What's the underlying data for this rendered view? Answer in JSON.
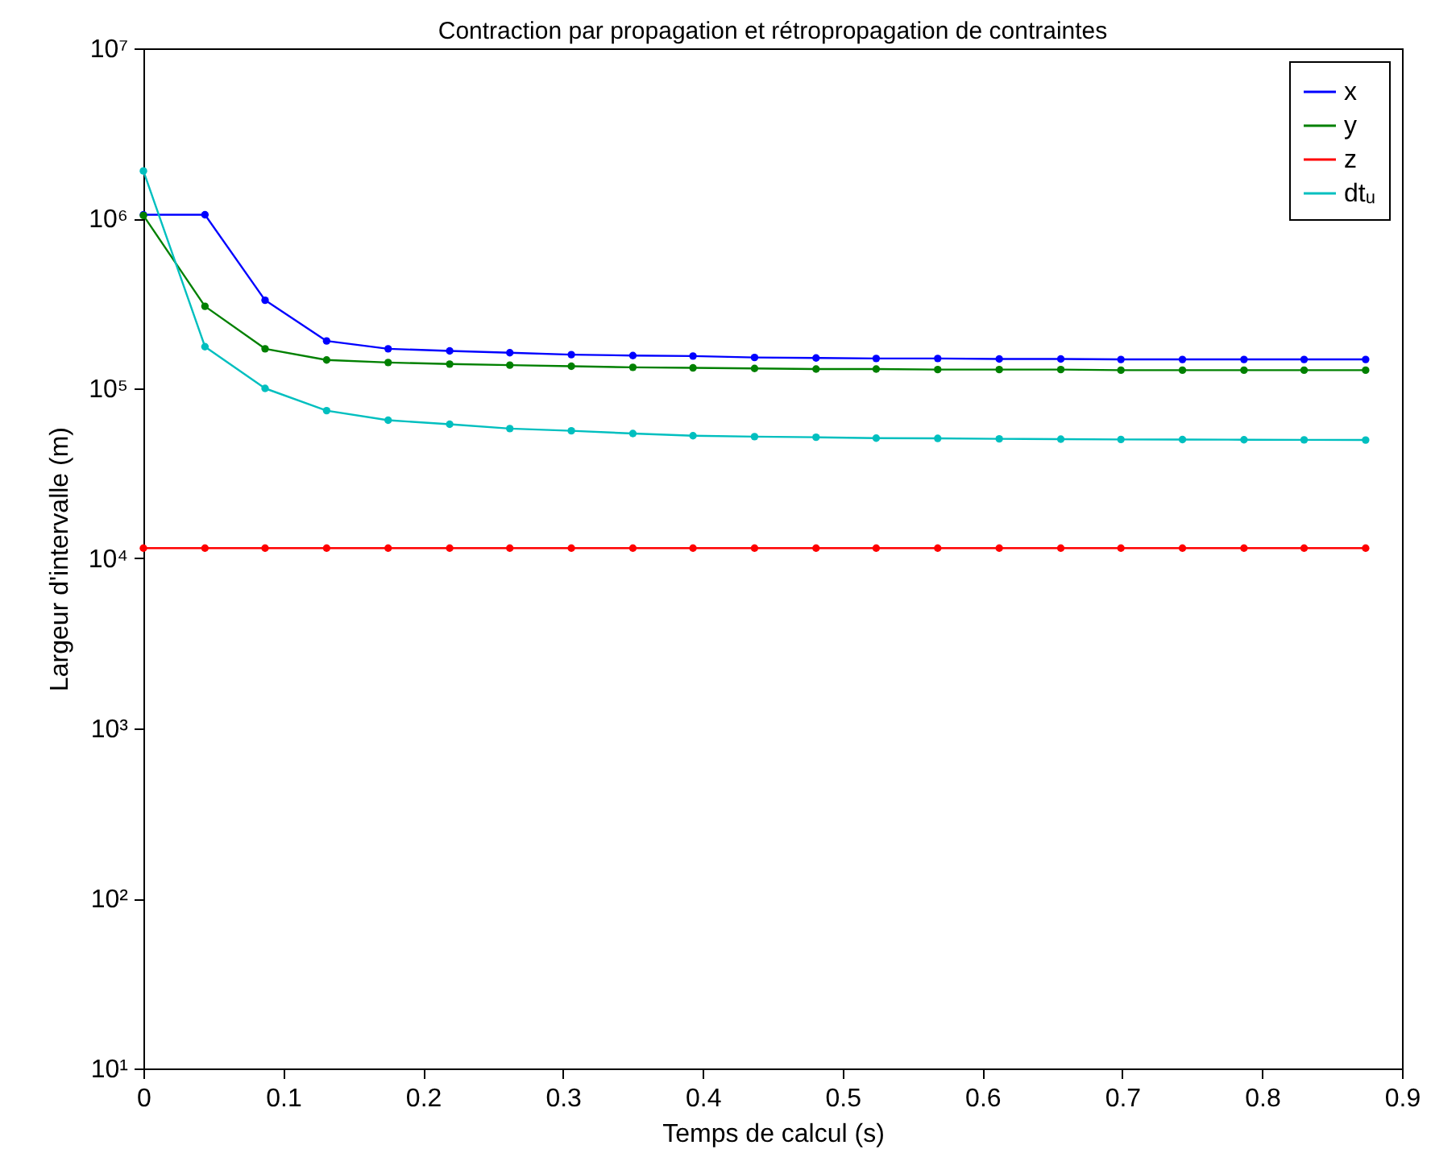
{
  "chart_data": {
    "type": "line",
    "title": "Contraction par propagation et rétropropagation de contraintes",
    "xlabel": "Temps de calcul (s)",
    "ylabel": "Largeur d'intervalle (m)",
    "x": [
      0,
      0.044,
      0.087,
      0.131,
      0.175,
      0.219,
      0.262,
      0.306,
      0.35,
      0.393,
      0.437,
      0.481,
      0.524,
      0.568,
      0.612,
      0.656,
      0.699,
      0.743,
      0.787,
      0.83,
      0.874
    ],
    "series": [
      {
        "name": "x",
        "color": "#0000ff",
        "values": [
          1050000,
          1050000,
          330000,
          190000,
          171000,
          166000,
          162000,
          158000,
          156000,
          155000,
          152000,
          151000,
          150000,
          150000,
          149000,
          149000,
          148000,
          148000,
          148000,
          148000,
          148000
        ]
      },
      {
        "name": "y",
        "color": "#008000",
        "values": [
          1040000,
          304000,
          171000,
          147000,
          142000,
          139000,
          137000,
          135000,
          133000,
          132000,
          131000,
          130000,
          130000,
          129000,
          129000,
          129000,
          128000,
          128000,
          128000,
          128000,
          128000
        ]
      },
      {
        "name": "z",
        "color": "#ff0000",
        "values": [
          11500,
          11500,
          11500,
          11500,
          11500,
          11500,
          11500,
          11500,
          11500,
          11500,
          11500,
          11500,
          11500,
          11500,
          11500,
          11500,
          11500,
          11500,
          11500,
          11500,
          11500
        ]
      },
      {
        "name": "dtᵤ",
        "color": "#00bfbf",
        "values": [
          1900000,
          176000,
          100000,
          74000,
          65000,
          61500,
          58000,
          56300,
          54300,
          52700,
          52000,
          51600,
          51000,
          50800,
          50500,
          50300,
          50100,
          50000,
          49900,
          49800,
          49700
        ]
      }
    ],
    "xlim": [
      0,
      0.9
    ],
    "xticks": [
      0,
      0.1,
      0.2,
      0.3,
      0.4,
      0.5,
      0.6,
      0.7,
      0.8,
      0.9
    ],
    "ylim": [
      10,
      10000000
    ],
    "log": true,
    "yticks": [
      {
        "value": 10,
        "label": "10¹"
      },
      {
        "value": 100,
        "label": "10²"
      },
      {
        "value": 1000,
        "label": "10³"
      },
      {
        "value": 10000,
        "label": "10⁴"
      },
      {
        "value": 100000,
        "label": "10⁵"
      },
      {
        "value": 1000000,
        "label": "10⁶"
      },
      {
        "value": 10000000,
        "label": "10⁷"
      }
    ],
    "legend": "top right",
    "marker": "circle",
    "line_style": "solid",
    "grid": false
  }
}
